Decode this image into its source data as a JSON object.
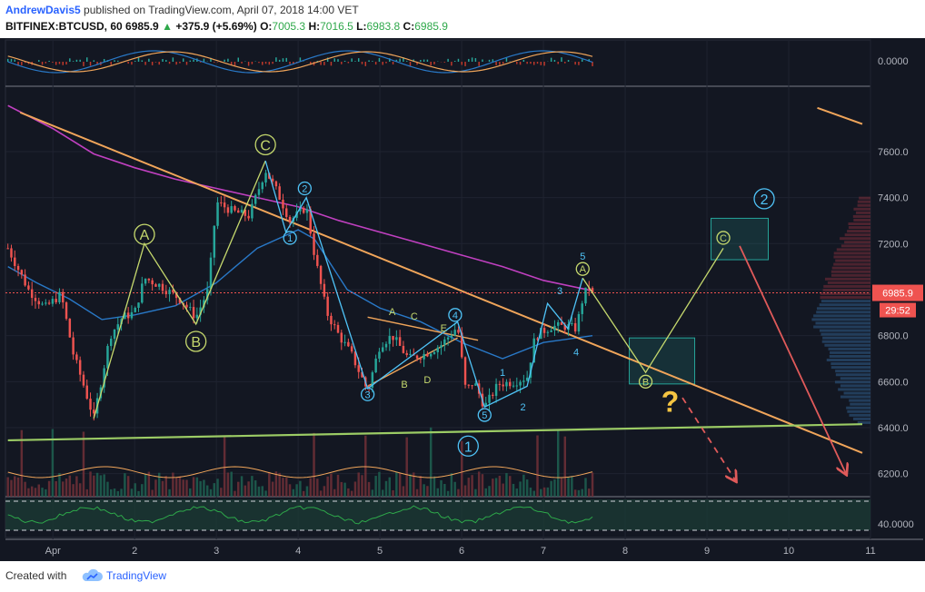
{
  "header": {
    "author": "AndrewDavis5",
    "published": "published on TradingView.com, April 07, 2018 14:00 VET",
    "symbol": "BITFINEX:BTCUSD, 60",
    "last": "6985.9",
    "change": "+375.9 (+5.69%)",
    "open_label": "O:",
    "open": "7005.3",
    "high_label": "H:",
    "high": "7016.5",
    "low_label": "L:",
    "low": "6983.8",
    "close_label": "C:",
    "close": "6985.9"
  },
  "footer": {
    "created": "Created with",
    "brand": "TradingView"
  },
  "colors": {
    "background": "#131722",
    "up": "#26a69a",
    "down": "#ef5350",
    "trendline": "#f0a55a",
    "support": "#9ccc65",
    "wave": "#c5d86d",
    "ma_slow": "#c040c0",
    "ma_fast": "#2979c8",
    "projection": "#e05a5a"
  },
  "chart_data": {
    "type": "candlestick",
    "x_ticks": [
      {
        "label": "Apr",
        "day": 1
      },
      {
        "label": "2",
        "day": 2
      },
      {
        "label": "3",
        "day": 3
      },
      {
        "label": "4",
        "day": 4
      },
      {
        "label": "5",
        "day": 5
      },
      {
        "label": "6",
        "day": 6
      },
      {
        "label": "7",
        "day": 7
      },
      {
        "label": "8",
        "day": 8
      },
      {
        "label": "9",
        "day": 9
      },
      {
        "label": "10",
        "day": 10
      },
      {
        "label": "11",
        "day": 11
      }
    ],
    "xlim": [
      0.42,
      11.0
    ],
    "ylim": [
      6100,
      7880
    ],
    "y_ticks": [
      "7600.0",
      "7400.0",
      "7200.0",
      "7000.0",
      "6800.0",
      "6600.0",
      "6400.0",
      "6200.0"
    ],
    "oscillator_top": {
      "tick_label": "0.0000"
    },
    "oscillator_bottom": {
      "tick_label": "40.0000"
    },
    "last_price": {
      "label": "6985.9",
      "value": 6985.9,
      "countdown": "29:52"
    },
    "price_path": [
      [
        0.45,
        7180
      ],
      [
        0.7,
        7000
      ],
      [
        0.9,
        6920
      ],
      [
        1.1,
        6980
      ],
      [
        1.25,
        6720
      ],
      [
        1.38,
        6580
      ],
      [
        1.5,
        6440
      ],
      [
        1.7,
        6800
      ],
      [
        1.85,
        6880
      ],
      [
        2.0,
        6900
      ],
      [
        2.12,
        7050
      ],
      [
        2.3,
        7020
      ],
      [
        2.55,
        6960
      ],
      [
        2.75,
        6880
      ],
      [
        2.9,
        7000
      ],
      [
        3.0,
        7380
      ],
      [
        3.2,
        7340
      ],
      [
        3.4,
        7320
      ],
      [
        3.6,
        7520
      ],
      [
        3.75,
        7420
      ],
      [
        3.9,
        7300
      ],
      [
        4.0,
        7330
      ],
      [
        4.1,
        7360
      ],
      [
        4.2,
        7150
      ],
      [
        4.35,
        6900
      ],
      [
        4.5,
        6800
      ],
      [
        4.65,
        6720
      ],
      [
        4.85,
        6560
      ],
      [
        5.0,
        6760
      ],
      [
        5.15,
        6800
      ],
      [
        5.35,
        6700
      ],
      [
        5.55,
        6720
      ],
      [
        5.75,
        6760
      ],
      [
        5.95,
        6840
      ],
      [
        6.05,
        6560
      ],
      [
        6.15,
        6600
      ],
      [
        6.28,
        6490
      ],
      [
        6.45,
        6590
      ],
      [
        6.65,
        6600
      ],
      [
        6.8,
        6620
      ],
      [
        6.9,
        6800
      ],
      [
        7.1,
        6840
      ],
      [
        7.3,
        6840
      ],
      [
        7.4,
        6830
      ],
      [
        7.48,
        6960
      ],
      [
        7.55,
        7020
      ],
      [
        7.6,
        6985.9
      ]
    ],
    "ma_slow": [
      [
        0.45,
        7800
      ],
      [
        1.0,
        7700
      ],
      [
        1.5,
        7590
      ],
      [
        2.0,
        7530
      ],
      [
        2.5,
        7480
      ],
      [
        3.0,
        7440
      ],
      [
        3.5,
        7400
      ],
      [
        4.0,
        7360
      ],
      [
        4.5,
        7300
      ],
      [
        5.0,
        7250
      ],
      [
        5.5,
        7200
      ],
      [
        6.0,
        7150
      ],
      [
        6.5,
        7100
      ],
      [
        7.0,
        7040
      ],
      [
        7.6,
        6995
      ]
    ],
    "ma_fast": [
      [
        0.45,
        7100
      ],
      [
        0.8,
        7030
      ],
      [
        1.2,
        6960
      ],
      [
        1.6,
        6870
      ],
      [
        2.0,
        6890
      ],
      [
        2.5,
        6930
      ],
      [
        3.0,
        7030
      ],
      [
        3.5,
        7180
      ],
      [
        4.0,
        7260
      ],
      [
        4.2,
        7220
      ],
      [
        4.6,
        7000
      ],
      [
        5.0,
        6920
      ],
      [
        5.5,
        6860
      ],
      [
        6.0,
        6770
      ],
      [
        6.5,
        6700
      ],
      [
        7.0,
        6770
      ],
      [
        7.6,
        6800
      ]
    ],
    "trendline_upper": [
      [
        0.6,
        7770
      ],
      [
        10.9,
        6290
      ]
    ],
    "trendline_upper_2": [
      [
        10.35,
        7790
      ],
      [
        10.9,
        7720
      ]
    ],
    "support_line": [
      [
        0.45,
        6345
      ],
      [
        10.9,
        6415
      ]
    ],
    "triangle_lines": [
      [
        [
          4.85,
          6580
        ],
        [
          5.95,
          6790
        ]
      ],
      [
        [
          4.85,
          6880
        ],
        [
          6.2,
          6780
        ]
      ]
    ],
    "wave_lines": [
      [
        [
          1.5,
          6440
        ],
        [
          2.12,
          7200
        ],
        [
          2.75,
          6850
        ],
        [
          3.6,
          7560
        ]
      ],
      [
        [
          3.6,
          7560
        ],
        [
          3.85,
          7250
        ],
        [
          4.1,
          7400
        ],
        [
          4.85,
          6570
        ],
        [
          5.95,
          6860
        ],
        [
          6.28,
          6490
        ],
        [
          6.8,
          6580
        ],
        [
          7.05,
          6940
        ],
        [
          7.3,
          6830
        ],
        [
          7.48,
          7050
        ]
      ],
      [
        [
          7.48,
          7050
        ],
        [
          8.25,
          6640
        ],
        [
          9.2,
          7180
        ]
      ]
    ],
    "box": {
      "x": [
        9.05,
        9.75
      ],
      "y": [
        7130,
        7310
      ]
    },
    "box2": {
      "x": [
        8.05,
        8.85
      ],
      "y": [
        6590,
        6790
      ]
    },
    "projection_arrows": [
      {
        "from": [
          9.4,
          7190
        ],
        "to": [
          10.7,
          6200
        ],
        "dashed": false
      },
      {
        "from": [
          8.7,
          6530
        ],
        "to": [
          9.35,
          6170
        ],
        "dashed": true
      }
    ],
    "wave_labels": [
      {
        "text": "A",
        "x": 2.12,
        "y": 7240,
        "circle": true,
        "size": "large",
        "color": "#c5d86d"
      },
      {
        "text": "B",
        "x": 2.75,
        "y": 6775,
        "circle": true,
        "size": "large",
        "color": "#c5d86d"
      },
      {
        "text": "C",
        "x": 3.6,
        "y": 7630,
        "circle": true,
        "size": "large",
        "color": "#c5d86d"
      },
      {
        "text": "1",
        "x": 3.9,
        "y": 7225,
        "circle": true,
        "size": "small",
        "color": "#4fc3f7"
      },
      {
        "text": "2",
        "x": 4.08,
        "y": 7440,
        "circle": true,
        "size": "small",
        "color": "#4fc3f7"
      },
      {
        "text": "3",
        "x": 4.85,
        "y": 6545,
        "circle": true,
        "size": "small",
        "color": "#4fc3f7"
      },
      {
        "text": "4",
        "x": 5.92,
        "y": 6890,
        "circle": true,
        "size": "small",
        "color": "#4fc3f7"
      },
      {
        "text": "5",
        "x": 6.28,
        "y": 6455,
        "circle": true,
        "size": "small",
        "color": "#4fc3f7"
      },
      {
        "text": "1",
        "x": 6.08,
        "y": 6320,
        "circle": true,
        "size": "large",
        "color": "#4fc3f7"
      },
      {
        "text": "A",
        "x": 5.15,
        "y": 6905,
        "circle": false,
        "size": "small",
        "color": "#c5d86d"
      },
      {
        "text": "B",
        "x": 5.3,
        "y": 6590,
        "circle": false,
        "size": "small",
        "color": "#c5d86d"
      },
      {
        "text": "C",
        "x": 5.42,
        "y": 6885,
        "circle": false,
        "size": "small",
        "color": "#c5d86d"
      },
      {
        "text": "D",
        "x": 5.58,
        "y": 6610,
        "circle": false,
        "size": "small",
        "color": "#c5d86d"
      },
      {
        "text": "E",
        "x": 5.78,
        "y": 6835,
        "circle": false,
        "size": "small",
        "color": "#c5d86d"
      },
      {
        "text": "1",
        "x": 6.5,
        "y": 6640,
        "circle": false,
        "size": "small",
        "color": "#4fc3f7"
      },
      {
        "text": "2",
        "x": 6.75,
        "y": 6490,
        "circle": false,
        "size": "small",
        "color": "#4fc3f7"
      },
      {
        "text": "3",
        "x": 7.2,
        "y": 6995,
        "circle": false,
        "size": "small",
        "color": "#4fc3f7"
      },
      {
        "text": "4",
        "x": 7.4,
        "y": 6730,
        "circle": false,
        "size": "small",
        "color": "#4fc3f7"
      },
      {
        "text": "5",
        "x": 7.48,
        "y": 7145,
        "circle": false,
        "size": "small",
        "color": "#4fc3f7"
      },
      {
        "text": "A",
        "x": 7.48,
        "y": 7090,
        "circle": true,
        "size": "small",
        "color": "#c5d86d"
      },
      {
        "text": "B",
        "x": 8.25,
        "y": 6600,
        "circle": true,
        "size": "small",
        "color": "#c5d86d"
      },
      {
        "text": "C",
        "x": 9.2,
        "y": 7225,
        "circle": true,
        "size": "small",
        "color": "#c5d86d"
      },
      {
        "text": "2",
        "x": 9.7,
        "y": 7395,
        "circle": true,
        "size": "large",
        "color": "#4fc3f7"
      },
      {
        "text": "?",
        "x": 8.55,
        "y": 6470,
        "circle": false,
        "size": "question",
        "color": "#f5c542"
      }
    ]
  }
}
